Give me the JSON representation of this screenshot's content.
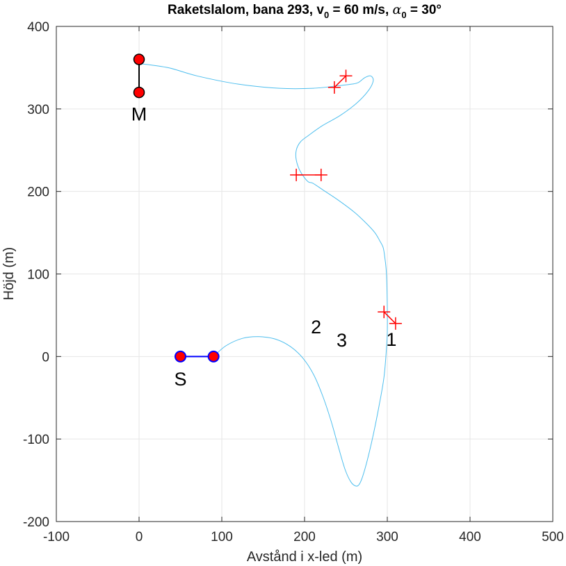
{
  "chart_data": {
    "type": "line",
    "title_parts": {
      "main": "Raketslalom, bana 293, v",
      "v_sub": "0",
      "v_rest": " = 60 m/s, ",
      "alpha": "α",
      "alpha_sub": "0",
      "alpha_rest": " = 30°"
    },
    "xlabel": "Avstånd i x-led (m)",
    "ylabel": "Höjd (m)",
    "xlim": [
      -100,
      500
    ],
    "ylim": [
      -200,
      400
    ],
    "xticks": [
      -100,
      0,
      100,
      200,
      300,
      400,
      500
    ],
    "yticks": [
      -200,
      -100,
      0,
      100,
      200,
      300,
      400
    ],
    "xtick_labels": [
      "-100",
      "0",
      "100",
      "200",
      "300",
      "400",
      "500"
    ],
    "ytick_labels": [
      "-200",
      "-100",
      "0",
      "100",
      "200",
      "300",
      "400"
    ],
    "grid": true,
    "colors": {
      "trajectory": "#4DBEEE",
      "gate_marker": "#FF0000",
      "start_line": "#0000FF",
      "start_marker_fill": "#FF0000",
      "start_marker_edge": "#0000FF",
      "end_line": "#000000",
      "end_marker_fill": "#FF0000",
      "end_marker_edge": "#000000",
      "grid": "#E6E6E6",
      "axes": "#262626"
    },
    "trajectory": {
      "x": [
        90,
        105,
        125,
        145,
        165,
        183,
        198,
        211,
        222,
        232,
        241,
        249,
        256,
        262,
        266,
        270,
        276,
        283,
        290,
        296,
        299,
        300,
        300,
        299,
        297,
        295,
        291,
        285,
        275,
        260,
        240,
        222,
        210,
        204,
        195,
        190,
        190,
        195,
        205,
        222,
        243,
        263,
        277,
        283,
        280,
        273,
        265,
        257,
        240,
        210,
        170,
        120,
        70,
        35,
        0
      ],
      "y": [
        0,
        13,
        22,
        24,
        21,
        12,
        -2,
        -22,
        -48,
        -78,
        -110,
        -137,
        -152,
        -157,
        -155,
        -146,
        -125,
        -95,
        -60,
        -25,
        10,
        30,
        60,
        100,
        120,
        132,
        140,
        150,
        161,
        175,
        190,
        202,
        210,
        212,
        224,
        238,
        250,
        260,
        268,
        280,
        292,
        307,
        322,
        334,
        340,
        338,
        332,
        330,
        328,
        325,
        325,
        330,
        340,
        350,
        355
      ]
    },
    "gates": [
      {
        "label": "1",
        "points": [
          [
            296,
            54
          ],
          [
            310,
            40
          ]
        ]
      },
      {
        "label": "2",
        "points": [
          [
            190,
            220
          ],
          [
            220,
            220
          ]
        ]
      },
      {
        "label": "3",
        "points": [
          [
            236,
            326
          ],
          [
            250,
            340
          ]
        ]
      }
    ],
    "start": {
      "label": "S",
      "points": [
        [
          50,
          0
        ],
        [
          90,
          0
        ]
      ]
    },
    "finish": {
      "label": "M",
      "points": [
        [
          0,
          320
        ],
        [
          0,
          360
        ]
      ]
    }
  }
}
